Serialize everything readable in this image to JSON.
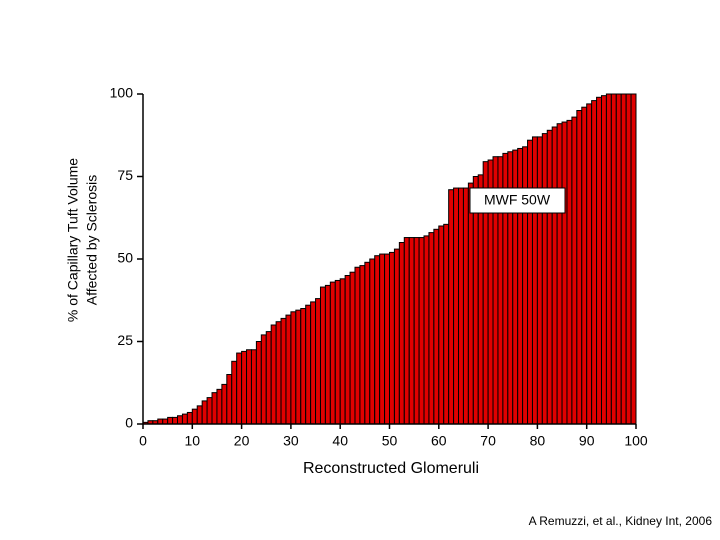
{
  "chart_data": {
    "type": "bar",
    "x_label": "Reconstructed Glomeruli",
    "y_label": [
      "% of Capillary Tuft Volume",
      "Affected by Sclerosis"
    ],
    "annotation": "MWF 50W",
    "source": "A Remuzzi, et al., Kidney Int, 2006",
    "color": "#e00000",
    "x": [
      1,
      2,
      3,
      4,
      5,
      6,
      7,
      8,
      9,
      10,
      11,
      12,
      13,
      14,
      15,
      16,
      17,
      18,
      19,
      20,
      21,
      22,
      23,
      24,
      25,
      26,
      27,
      28,
      29,
      30,
      31,
      32,
      33,
      34,
      35,
      36,
      37,
      38,
      39,
      40,
      41,
      42,
      43,
      44,
      45,
      46,
      47,
      48,
      49,
      50,
      51,
      52,
      53,
      54,
      55,
      56,
      57,
      58,
      59,
      60,
      61,
      62,
      63,
      64,
      65,
      66,
      67,
      68,
      69,
      70,
      71,
      72,
      73,
      74,
      75,
      76,
      77,
      78,
      79,
      80,
      81,
      82,
      83,
      84,
      85,
      86,
      87,
      88,
      89,
      90,
      91,
      92,
      93,
      94,
      95,
      96,
      97,
      98,
      99,
      100
    ],
    "values": [
      0.5,
      1,
      1,
      1.5,
      1.5,
      2,
      2,
      2.5,
      3,
      3.5,
      4.5,
      5.5,
      7,
      8,
      9.5,
      10.5,
      12,
      15,
      19,
      21.5,
      22,
      22.5,
      22.5,
      25,
      27,
      28,
      30,
      31,
      32,
      33,
      34,
      34.5,
      35,
      36,
      37,
      38,
      41.5,
      42,
      43,
      43.5,
      44,
      45,
      46,
      47.5,
      48,
      49,
      50,
      51,
      51.5,
      51.5,
      52,
      53,
      55,
      56.5,
      56.5,
      56.5,
      56.5,
      57,
      58,
      59,
      60,
      60.5,
      71,
      71.5,
      71.5,
      71.5,
      73,
      75,
      75.5,
      79.5,
      80,
      81,
      81,
      82,
      82.5,
      83,
      83.5,
      84,
      86,
      87,
      87,
      88,
      89,
      90,
      91,
      91.5,
      92,
      93,
      95,
      96,
      97,
      98,
      99,
      99.5,
      100,
      100,
      100,
      100,
      100,
      100
    ],
    "xlim": [
      0,
      100
    ],
    "xticks": [
      0,
      10,
      20,
      30,
      40,
      50,
      60,
      70,
      80,
      90,
      100
    ],
    "ylim": [
      0,
      100
    ],
    "yticks": [
      0,
      25,
      50,
      75,
      100
    ]
  }
}
